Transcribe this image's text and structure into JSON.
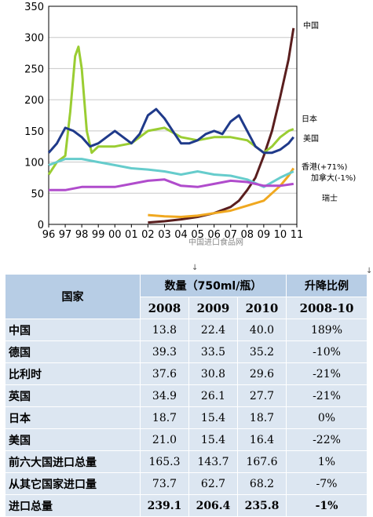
{
  "chart_data": {
    "type": "line",
    "x_ticks": [
      "96",
      "97",
      "98",
      "99",
      "00",
      "01",
      "02",
      "03",
      "04",
      "05",
      "06",
      "07",
      "08",
      "09",
      "10",
      "11"
    ],
    "y_ticks": [
      0,
      50,
      100,
      150,
      200,
      250,
      300,
      350
    ],
    "ylim": [
      0,
      350
    ],
    "xlim": [
      1996,
      2011
    ],
    "watermark": "中国进口食品网",
    "series": [
      {
        "name": "中国",
        "color": "#5a1e1e",
        "x": [
          2002,
          2003,
          2004,
          2005,
          2006,
          2007,
          2007.5,
          2008,
          2008.5,
          2009,
          2009.5,
          2010,
          2010.5,
          2010.8
        ],
        "y": [
          3,
          5,
          8,
          12,
          18,
          28,
          38,
          55,
          75,
          110,
          150,
          205,
          265,
          315
        ]
      },
      {
        "name": "日本",
        "color": "#9acd32",
        "x": [
          1996,
          1996.5,
          1997,
          1997.3,
          1997.6,
          1997.8,
          1998,
          1998.3,
          1998.6,
          1999,
          2000,
          2001,
          2002,
          2003,
          2004,
          2005,
          2006,
          2007,
          2008,
          2009,
          2009.5,
          2010,
          2010.5,
          2010.8
        ],
        "y": [
          80,
          100,
          110,
          180,
          270,
          285,
          250,
          150,
          115,
          125,
          125,
          130,
          150,
          155,
          140,
          135,
          140,
          140,
          135,
          115,
          125,
          140,
          150,
          153
        ]
      },
      {
        "name": "美国",
        "color": "#1f3a8a",
        "x": [
          1996,
          1996.5,
          1997,
          1997.5,
          1998,
          1998.5,
          1999,
          1999.5,
          2000,
          2000.5,
          2001,
          2001.5,
          2002,
          2002.5,
          2003,
          2003.5,
          2004,
          2004.5,
          2005,
          2005.5,
          2006,
          2006.5,
          2007,
          2007.5,
          2008,
          2008.5,
          2009,
          2009.5,
          2010,
          2010.5,
          2010.8
        ],
        "y": [
          115,
          130,
          155,
          150,
          140,
          125,
          130,
          140,
          150,
          140,
          130,
          145,
          175,
          185,
          170,
          150,
          130,
          130,
          135,
          145,
          150,
          145,
          165,
          175,
          150,
          125,
          115,
          115,
          120,
          130,
          140
        ]
      },
      {
        "name": "香港(+71%)",
        "color": "#f0a820",
        "x": [
          2002,
          2003,
          2004,
          2005,
          2006,
          2007,
          2008,
          2009,
          2009.5,
          2010,
          2010.5,
          2010.8
        ],
        "y": [
          15,
          13,
          12,
          14,
          18,
          22,
          30,
          38,
          50,
          62,
          78,
          90
        ]
      },
      {
        "name": "加拿大(-1%)",
        "color": "#66cccc",
        "x": [
          1996,
          1997,
          1998,
          1999,
          2000,
          2001,
          2002,
          2003,
          2004,
          2005,
          2006,
          2007,
          2008,
          2009,
          2010,
          2010.8
        ],
        "y": [
          95,
          105,
          105,
          100,
          95,
          90,
          88,
          85,
          80,
          85,
          80,
          78,
          72,
          60,
          75,
          85
        ]
      },
      {
        "name": "瑞士",
        "color": "#b04ccc",
        "x": [
          1996,
          1997,
          1998,
          1999,
          2000,
          2001,
          2002,
          2003,
          2004,
          2005,
          2006,
          2007,
          2008,
          2009,
          2010,
          2010.8
        ],
        "y": [
          55,
          55,
          60,
          60,
          60,
          65,
          70,
          72,
          62,
          60,
          65,
          70,
          68,
          62,
          62,
          65
        ]
      }
    ]
  },
  "chart_marks": [
    "↓",
    "↓"
  ],
  "table": {
    "header_country": "国家",
    "header_qty": "数量（750ml/瓶）",
    "header_change": "升降比例",
    "years": [
      "2008",
      "2009",
      "2010"
    ],
    "change_period": "2008-10",
    "rows": [
      {
        "country": "中国",
        "v2008": "13.8",
        "v2009": "22.4",
        "v2010": "40.0",
        "change": "189%"
      },
      {
        "country": "德国",
        "v2008": "39.3",
        "v2009": "33.5",
        "v2010": "35.2",
        "change": "-10%"
      },
      {
        "country": "比利时",
        "v2008": "37.6",
        "v2009": "30.8",
        "v2010": "29.6",
        "change": "-21%"
      },
      {
        "country": "英国",
        "v2008": "34.9",
        "v2009": "26.1",
        "v2010": "27.7",
        "change": "-21%"
      },
      {
        "country": "日本",
        "v2008": "18.7",
        "v2009": "15.4",
        "v2010": "18.7",
        "change": "0%"
      },
      {
        "country": "美国",
        "v2008": "21.0",
        "v2009": "15.4",
        "v2010": "16.4",
        "change": "-22%"
      },
      {
        "country": "前六大国进口总量",
        "v2008": "165.3",
        "v2009": "143.7",
        "v2010": "167.6",
        "change": "1%"
      },
      {
        "country": "从其它国家进口量",
        "v2008": "73.7",
        "v2009": "62.7",
        "v2010": "68.2",
        "change": "-7%"
      },
      {
        "country": "进口总量",
        "v2008": "239.1",
        "v2009": "206.4",
        "v2010": "235.8",
        "change": "-1%"
      }
    ]
  }
}
